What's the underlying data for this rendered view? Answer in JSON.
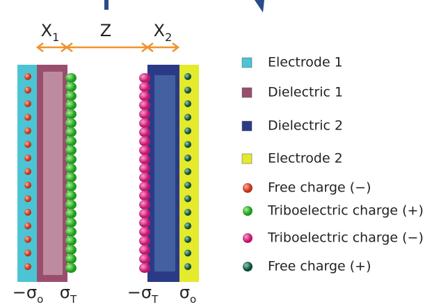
{
  "labels": {
    "x1": {
      "main": "X",
      "sub": "1"
    },
    "z": "Z",
    "x2": {
      "main": "X",
      "sub": "2"
    },
    "bottom": [
      {
        "main": "−σ",
        "sub": "o"
      },
      {
        "main": "σ",
        "sub": "T"
      },
      {
        "main": "−σ",
        "sub": "T"
      },
      {
        "main": "σ",
        "sub": "o"
      }
    ]
  },
  "legend": [
    "Electrode 1",
    "Dielectric 1",
    "Dielectric 2",
    "Electrode 2",
    "Free charge (−)",
    "Triboelectric charge (+)",
    "Triboelectric charge (−)",
    "Free charge (+)"
  ]
}
